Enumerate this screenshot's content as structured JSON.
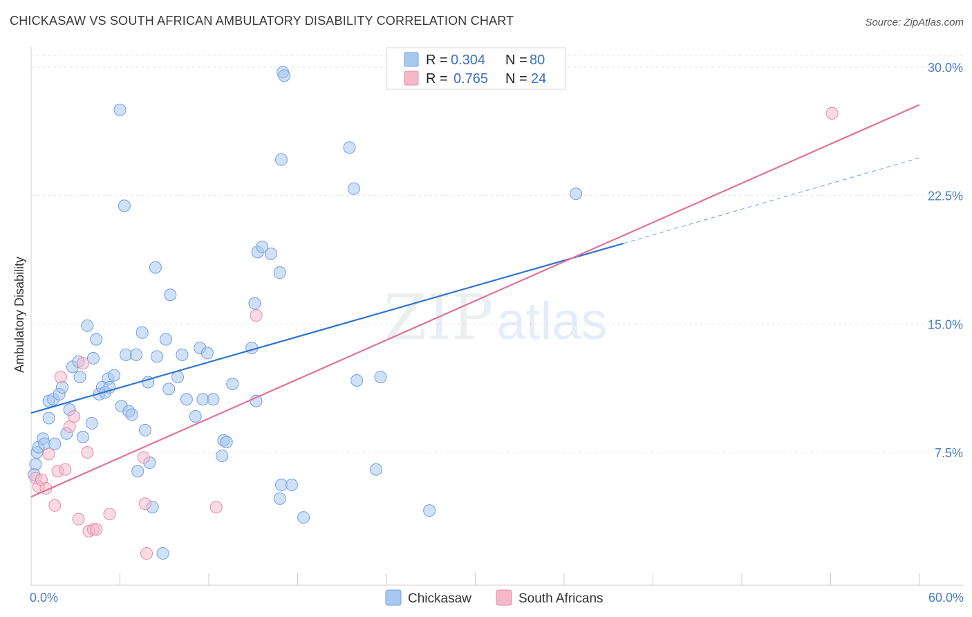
{
  "title": "CHICKASAW VS SOUTH AFRICAN AMBULATORY DISABILITY CORRELATION CHART",
  "source": "Source: ZipAtlas.com",
  "watermark": {
    "zip": "ZIP",
    "atlas": "atlas"
  },
  "colors": {
    "blue_fill": "#a9c8f0",
    "blue_stroke": "#6f9fe0",
    "blue_line": "#2f74d0",
    "pink_fill": "#f5b8ca",
    "pink_stroke": "#e88aa8",
    "pink_line": "#e2729a",
    "grid": "#e6e6e6",
    "axis_text": "#4a7cc7"
  },
  "legend": {
    "r_label": "R =",
    "n_label": "N =",
    "series": [
      {
        "r": "0.304",
        "n": "80"
      },
      {
        "r": "0.765",
        "n": "24"
      }
    ]
  },
  "chart_data": {
    "type": "scatter",
    "title": "CHICKASAW VS SOUTH AFRICAN AMBULATORY DISABILITY CORRELATION CHART",
    "xlabel": "",
    "ylabel": "Ambulatory Disability",
    "xlim": [
      0,
      60
    ],
    "ylim": [
      0,
      31
    ],
    "x_tick_labels": [
      "0.0%",
      "60.0%"
    ],
    "y_ticks": [
      7.5,
      15.0,
      22.5,
      30.0
    ],
    "y_tick_labels": [
      "7.5%",
      "15.0%",
      "22.5%",
      "30.0%"
    ],
    "series": [
      {
        "name": "Chickasaw",
        "r": 0.304,
        "n": 80,
        "trend": {
          "x0": 0,
          "y0": 9.8,
          "x1": 40,
          "y1": 19.7,
          "dash_x1": 60,
          "dash_y1": 24.7
        },
        "points": [
          [
            0.3,
            6.8
          ],
          [
            0.4,
            7.5
          ],
          [
            0.5,
            7.8
          ],
          [
            0.8,
            8.3
          ],
          [
            0.9,
            8.0
          ],
          [
            1.2,
            9.5
          ],
          [
            1.2,
            10.5
          ],
          [
            1.5,
            10.6
          ],
          [
            1.6,
            8.0
          ],
          [
            1.9,
            10.9
          ],
          [
            2.1,
            11.3
          ],
          [
            2.4,
            8.6
          ],
          [
            2.6,
            10.0
          ],
          [
            2.8,
            12.5
          ],
          [
            3.2,
            12.8
          ],
          [
            3.3,
            11.9
          ],
          [
            3.5,
            8.4
          ],
          [
            3.8,
            14.9
          ],
          [
            4.1,
            9.2
          ],
          [
            4.2,
            13.0
          ],
          [
            4.4,
            14.1
          ],
          [
            4.6,
            10.9
          ],
          [
            4.8,
            11.3
          ],
          [
            5.0,
            11.0
          ],
          [
            5.2,
            11.8
          ],
          [
            5.3,
            11.3
          ],
          [
            5.6,
            12.0
          ],
          [
            6.0,
            27.5
          ],
          [
            6.1,
            10.2
          ],
          [
            6.3,
            21.9
          ],
          [
            6.4,
            13.2
          ],
          [
            6.6,
            9.9
          ],
          [
            6.8,
            9.7
          ],
          [
            7.1,
            13.2
          ],
          [
            7.2,
            6.4
          ],
          [
            7.5,
            14.5
          ],
          [
            7.7,
            8.8
          ],
          [
            7.9,
            11.6
          ],
          [
            8.0,
            6.9
          ],
          [
            8.2,
            4.3
          ],
          [
            8.4,
            18.3
          ],
          [
            8.5,
            13.1
          ],
          [
            8.9,
            1.6
          ],
          [
            9.1,
            14.1
          ],
          [
            9.3,
            11.2
          ],
          [
            9.4,
            16.7
          ],
          [
            9.9,
            11.9
          ],
          [
            10.2,
            13.2
          ],
          [
            10.5,
            10.6
          ],
          [
            11.1,
            9.6
          ],
          [
            11.4,
            13.6
          ],
          [
            11.6,
            10.6
          ],
          [
            11.9,
            13.3
          ],
          [
            12.3,
            10.6
          ],
          [
            12.9,
            7.3
          ],
          [
            13.0,
            8.2
          ],
          [
            13.2,
            8.1
          ],
          [
            13.6,
            11.5
          ],
          [
            14.9,
            13.6
          ],
          [
            15.1,
            16.2
          ],
          [
            15.2,
            10.5
          ],
          [
            15.3,
            19.2
          ],
          [
            16.2,
            19.1
          ],
          [
            16.8,
            18.0
          ],
          [
            16.9,
            24.6
          ],
          [
            16.8,
            4.8
          ],
          [
            16.9,
            5.6
          ],
          [
            15.6,
            19.5
          ],
          [
            17.0,
            29.7
          ],
          [
            17.1,
            29.5
          ],
          [
            17.6,
            5.6
          ],
          [
            18.4,
            3.7
          ],
          [
            21.5,
            25.3
          ],
          [
            21.8,
            22.9
          ],
          [
            22.0,
            11.7
          ],
          [
            23.3,
            6.5
          ],
          [
            23.6,
            11.9
          ],
          [
            26.9,
            4.1
          ],
          [
            36.8,
            22.6
          ],
          [
            0.2,
            6.2
          ]
        ]
      },
      {
        "name": "South Africans",
        "r": 0.765,
        "n": 24,
        "trend": {
          "x0": 0,
          "y0": 4.9,
          "x1": 60,
          "y1": 27.8
        },
        "points": [
          [
            0.3,
            6.0
          ],
          [
            0.5,
            5.5
          ],
          [
            0.7,
            5.9
          ],
          [
            1.0,
            5.4
          ],
          [
            1.2,
            7.4
          ],
          [
            1.6,
            4.4
          ],
          [
            1.8,
            6.4
          ],
          [
            2.0,
            11.9
          ],
          [
            2.3,
            6.5
          ],
          [
            2.6,
            9.0
          ],
          [
            2.9,
            9.6
          ],
          [
            3.2,
            3.6
          ],
          [
            3.5,
            12.7
          ],
          [
            3.8,
            7.5
          ],
          [
            3.9,
            2.9
          ],
          [
            4.2,
            3.0
          ],
          [
            4.4,
            3.0
          ],
          [
            5.3,
            3.9
          ],
          [
            7.6,
            7.2
          ],
          [
            7.7,
            4.5
          ],
          [
            7.8,
            1.6
          ],
          [
            12.5,
            4.3
          ],
          [
            15.2,
            15.5
          ],
          [
            54.1,
            27.3
          ]
        ]
      }
    ]
  },
  "bottom_legend": [
    "Chickasaw",
    "South Africans"
  ]
}
